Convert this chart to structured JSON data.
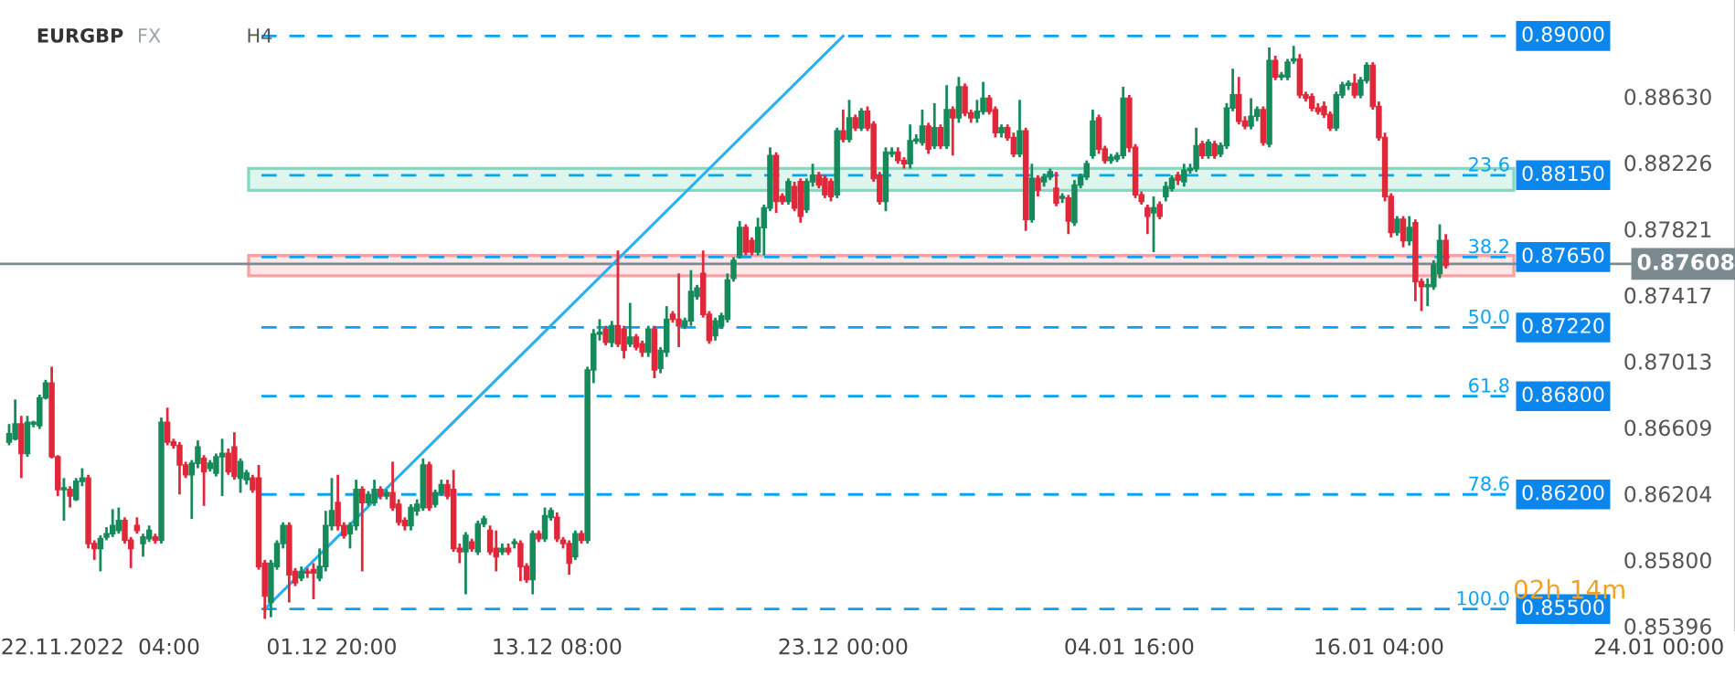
{
  "chart_data": {
    "type": "candlestick",
    "title": "EURGBP",
    "categories": [
      null,
      null,
      null,
      null,
      null,
      null,
      null,
      null,
      null,
      null,
      null,
      null,
      null,
      null,
      null,
      "22.11.2022  04:00",
      null,
      null,
      null,
      null,
      null,
      null,
      null,
      null,
      null,
      null,
      null,
      null,
      null,
      null,
      null,
      null,
      null,
      null,
      null,
      null,
      null,
      null,
      null,
      null,
      null,
      null,
      null,
      null,
      null,
      null,
      null,
      null,
      null,
      null,
      null,
      null,
      null,
      "01.12 20:00",
      null,
      null,
      null,
      null,
      null,
      null,
      null,
      null,
      null,
      null,
      null,
      null,
      null,
      null,
      null,
      null,
      null,
      null,
      null,
      null,
      null,
      null,
      null,
      null,
      null,
      null,
      null,
      null,
      null,
      null,
      null,
      null,
      null,
      null,
      null,
      null,
      "13.12 08:00",
      null,
      null,
      null,
      null,
      null,
      null,
      null,
      null,
      null,
      null,
      null,
      null,
      null,
      null,
      null,
      null,
      null,
      null,
      null,
      null,
      null,
      null,
      null,
      null,
      null,
      null,
      null,
      null,
      null,
      null,
      null,
      null,
      null,
      null,
      null,
      null,
      null,
      null,
      null,
      null,
      null,
      null,
      null,
      null,
      null,
      null,
      "23.12 00:00",
      null,
      null,
      null,
      null,
      null,
      null,
      null,
      null,
      null,
      null,
      null,
      null,
      null,
      null,
      null,
      null,
      null,
      null,
      null,
      null,
      null,
      null,
      null,
      null,
      null,
      null,
      null,
      null,
      null,
      null,
      null,
      null,
      null,
      null,
      null,
      null,
      null,
      null,
      null,
      null,
      null,
      null,
      null,
      null,
      null,
      null,
      "04.01 16:00",
      null,
      null,
      null,
      null,
      null,
      null,
      null,
      null,
      null,
      null,
      null,
      null,
      null,
      null,
      null,
      null,
      null,
      null,
      null,
      null,
      null,
      null,
      null,
      null,
      null,
      null,
      null,
      null,
      null,
      null,
      null,
      null,
      null,
      null,
      null,
      null,
      null,
      null,
      null,
      null,
      "16.01 04:00",
      null,
      null,
      null,
      null,
      null,
      null,
      null,
      null,
      null,
      null,
      null,
      null,
      null,
      null,
      null,
      null,
      null,
      null,
      null,
      null,
      null,
      null,
      null,
      null,
      null,
      null,
      null,
      null,
      null,
      null,
      null,
      null,
      null,
      null,
      null,
      null,
      null,
      null,
      null,
      null,
      null,
      null,
      null,
      null,
      null,
      "24.01 00:00",
      null,
      null,
      null,
      null,
      null,
      null,
      null,
      null,
      null,
      null,
      null,
      null
    ],
    "ohlc": [
      [
        0.8652,
        0.8663,
        0.865,
        0.8657
      ],
      [
        0.8654,
        0.8678,
        0.8653,
        0.8663
      ],
      [
        0.8663,
        0.8668,
        0.863,
        0.8645
      ],
      [
        0.8645,
        0.8668,
        0.8643,
        0.8664
      ],
      [
        0.8663,
        0.8665,
        0.8661,
        0.8664
      ],
      [
        0.8662,
        0.8681,
        0.866,
        0.8679
      ],
      [
        0.8679,
        0.869,
        0.8678,
        0.8688
      ],
      [
        0.8688,
        0.8698,
        0.8642,
        0.8643
      ],
      [
        0.8643,
        0.8644,
        0.8619,
        0.8623
      ],
      [
        0.8623,
        0.863,
        0.8604,
        0.8624
      ],
      [
        0.8623,
        0.8625,
        0.8612,
        0.8619
      ],
      [
        0.8617,
        0.863,
        0.8616,
        0.8628
      ],
      [
        0.8628,
        0.8636,
        0.8625,
        0.863
      ],
      [
        0.863,
        0.8632,
        0.8587,
        0.859
      ],
      [
        0.859,
        0.8592,
        0.858,
        0.8587
      ],
      [
        0.8587,
        0.8595,
        0.8573,
        0.8593
      ],
      [
        0.8594,
        0.86,
        0.8592,
        0.8596
      ],
      [
        0.8596,
        0.8611,
        0.8594,
        0.8601
      ],
      [
        0.8598,
        0.8612,
        0.8596,
        0.8604
      ],
      [
        0.8604,
        0.8606,
        0.859,
        0.8592
      ],
      [
        0.8592,
        0.8594,
        0.8575,
        0.8587
      ],
      [
        0.8601,
        0.8606,
        0.8596,
        0.8598
      ],
      [
        0.859,
        0.8596,
        0.8582,
        0.8594
      ],
      [
        0.8593,
        0.8601,
        0.8591,
        0.8598
      ],
      [
        0.8594,
        0.8596,
        0.859,
        0.8592
      ],
      [
        0.8592,
        0.8667,
        0.859,
        0.8664
      ],
      [
        0.8664,
        0.8673,
        0.865,
        0.8652
      ],
      [
        0.8652,
        0.8654,
        0.8648,
        0.865
      ],
      [
        0.865,
        0.8652,
        0.862,
        0.8638
      ],
      [
        0.8638,
        0.864,
        0.863,
        0.8632
      ],
      [
        0.8632,
        0.8641,
        0.8605,
        0.8639
      ],
      [
        0.8639,
        0.8653,
        0.8636,
        0.8649
      ],
      [
        0.8642,
        0.8644,
        0.8613,
        0.8634
      ],
      [
        0.8636,
        0.8641,
        0.8634,
        0.8639
      ],
      [
        0.8633,
        0.8645,
        0.8631,
        0.8643
      ],
      [
        0.8643,
        0.8654,
        0.8619,
        0.8645
      ],
      [
        0.8645,
        0.8648,
        0.8632,
        0.8634
      ],
      [
        0.8649,
        0.8658,
        0.8629,
        0.8631
      ],
      [
        0.863,
        0.8642,
        0.8621,
        0.864
      ],
      [
        0.8629,
        0.8635,
        0.8626,
        0.8633
      ],
      [
        0.863,
        0.8632,
        0.8621,
        0.8623
      ],
      [
        0.863,
        0.8638,
        0.8574,
        0.8576
      ],
      [
        0.8578,
        0.858,
        0.8544,
        0.8558
      ],
      [
        0.8554,
        0.858,
        0.8545,
        0.8578
      ],
      [
        0.8576,
        0.8592,
        0.8574,
        0.859
      ],
      [
        0.859,
        0.8603,
        0.8587,
        0.8601
      ],
      [
        0.8601,
        0.8603,
        0.8554,
        0.8571
      ],
      [
        0.8573,
        0.8575,
        0.8564,
        0.8566
      ],
      [
        0.8569,
        0.8576,
        0.8567,
        0.8573
      ],
      [
        0.8573,
        0.8575,
        0.8569,
        0.8572
      ],
      [
        0.8574,
        0.8578,
        0.8556,
        0.8572
      ],
      [
        0.8569,
        0.8587,
        0.8567,
        0.8576
      ],
      [
        0.8576,
        0.861,
        0.8573,
        0.8601
      ],
      [
        0.8601,
        0.863,
        0.8598,
        0.861
      ],
      [
        0.8615,
        0.8632,
        0.8598,
        0.8601
      ],
      [
        0.8601,
        0.8603,
        0.8593,
        0.8595
      ],
      [
        0.8596,
        0.8603,
        0.8587,
        0.8601
      ],
      [
        0.8601,
        0.8629,
        0.8598,
        0.8623
      ],
      [
        0.8623,
        0.8625,
        0.8573,
        0.8615
      ],
      [
        0.8615,
        0.8622,
        0.8613,
        0.862
      ],
      [
        0.8615,
        0.8629,
        0.8613,
        0.8623
      ],
      [
        0.8623,
        0.8625,
        0.8617,
        0.8619
      ],
      [
        0.8619,
        0.8623,
        0.8617,
        0.8621
      ],
      [
        0.8621,
        0.864,
        0.861,
        0.8612
      ],
      [
        0.8614,
        0.8617,
        0.8601,
        0.8603
      ],
      [
        0.8604,
        0.8606,
        0.8598,
        0.8601
      ],
      [
        0.8601,
        0.8614,
        0.8598,
        0.8612
      ],
      [
        0.861,
        0.8617,
        0.8607,
        0.8614
      ],
      [
        0.8612,
        0.8642,
        0.861,
        0.8638
      ],
      [
        0.8638,
        0.864,
        0.861,
        0.8612
      ],
      [
        0.8614,
        0.8623,
        0.8612,
        0.8621
      ],
      [
        0.8621,
        0.8629,
        0.8619,
        0.8626
      ],
      [
        0.8626,
        0.8629,
        0.8617,
        0.8619
      ],
      [
        0.8623,
        0.8635,
        0.8585,
        0.8587
      ],
      [
        0.8587,
        0.859,
        0.8578,
        0.8585
      ],
      [
        0.8585,
        0.8597,
        0.8559,
        0.8595
      ],
      [
        0.8591,
        0.8593,
        0.8585,
        0.8587
      ],
      [
        0.8585,
        0.8604,
        0.8583,
        0.8602
      ],
      [
        0.8602,
        0.8607,
        0.86,
        0.8605
      ],
      [
        0.8598,
        0.8601,
        0.8583,
        0.8585
      ],
      [
        0.8587,
        0.8598,
        0.8573,
        0.8582
      ],
      [
        0.8585,
        0.859,
        0.8583,
        0.8587
      ],
      [
        0.8587,
        0.859,
        0.8583,
        0.8585
      ],
      [
        0.859,
        0.8593,
        0.8587,
        0.8591
      ],
      [
        0.859,
        0.8592,
        0.8567,
        0.8576
      ],
      [
        0.8576,
        0.8578,
        0.8566,
        0.8568
      ],
      [
        0.8568,
        0.8598,
        0.8559,
        0.8596
      ],
      [
        0.8596,
        0.8598,
        0.8591,
        0.8593
      ],
      [
        0.8593,
        0.8612,
        0.8591,
        0.8607
      ],
      [
        0.8606,
        0.8612,
        0.8604,
        0.861
      ],
      [
        0.8606,
        0.8609,
        0.8591,
        0.8593
      ],
      [
        0.8592,
        0.8594,
        0.8587,
        0.859
      ],
      [
        0.859,
        0.8592,
        0.8571,
        0.8578
      ],
      [
        0.8582,
        0.8598,
        0.858,
        0.8596
      ],
      [
        0.8596,
        0.8598,
        0.859,
        0.8592
      ],
      [
        0.8592,
        0.8698,
        0.859,
        0.8696
      ],
      [
        0.8696,
        0.8721,
        0.8688,
        0.8718
      ],
      [
        0.8718,
        0.8727,
        0.8714,
        0.8719
      ],
      [
        0.8721,
        0.8723,
        0.8711,
        0.8713
      ],
      [
        0.8713,
        0.8726,
        0.871,
        0.8723
      ],
      [
        0.8723,
        0.8769,
        0.871,
        0.8712
      ],
      [
        0.8721,
        0.8723,
        0.8703,
        0.8708
      ],
      [
        0.8712,
        0.8737,
        0.871,
        0.8716
      ],
      [
        0.8716,
        0.8718,
        0.8708,
        0.871
      ],
      [
        0.8712,
        0.8714,
        0.8704,
        0.8707
      ],
      [
        0.8707,
        0.8723,
        0.8704,
        0.8721
      ],
      [
        0.8721,
        0.8723,
        0.8691,
        0.8696
      ],
      [
        0.8697,
        0.871,
        0.8694,
        0.8708
      ],
      [
        0.8707,
        0.8735,
        0.8704,
        0.8727
      ],
      [
        0.873,
        0.8732,
        0.8725,
        0.8727
      ],
      [
        0.8727,
        0.8755,
        0.871,
        0.8723
      ],
      [
        0.8723,
        0.8728,
        0.8721,
        0.8726
      ],
      [
        0.8726,
        0.8757,
        0.8723,
        0.8744
      ],
      [
        0.8741,
        0.8748,
        0.8739,
        0.8746
      ],
      [
        0.8755,
        0.8769,
        0.8728,
        0.873
      ],
      [
        0.873,
        0.8732,
        0.8712,
        0.8714
      ],
      [
        0.8717,
        0.8728,
        0.8714,
        0.8726
      ],
      [
        0.8723,
        0.8731,
        0.8721,
        0.8729
      ],
      [
        0.8727,
        0.8755,
        0.8725,
        0.8751
      ],
      [
        0.8752,
        0.8765,
        0.875,
        0.8763
      ],
      [
        0.8766,
        0.8787,
        0.8764,
        0.8783
      ],
      [
        0.8783,
        0.8785,
        0.8766,
        0.8768
      ],
      [
        0.8775,
        0.8777,
        0.8766,
        0.8768
      ],
      [
        0.8768,
        0.8789,
        0.8766,
        0.8783
      ],
      [
        0.8783,
        0.8797,
        0.8766,
        0.8795
      ],
      [
        0.8795,
        0.8832,
        0.8793,
        0.8827
      ],
      [
        0.8827,
        0.8829,
        0.8792,
        0.8799
      ],
      [
        0.8802,
        0.8804,
        0.8797,
        0.8799
      ],
      [
        0.8799,
        0.8813,
        0.8797,
        0.8811
      ],
      [
        0.8808,
        0.8811,
        0.8793,
        0.8795
      ],
      [
        0.8811,
        0.8813,
        0.8786,
        0.879
      ],
      [
        0.8794,
        0.8813,
        0.8792,
        0.8811
      ],
      [
        0.8811,
        0.8822,
        0.8808,
        0.8815
      ],
      [
        0.8815,
        0.8817,
        0.8807,
        0.8809
      ],
      [
        0.8813,
        0.8815,
        0.8801,
        0.8803
      ],
      [
        0.8811,
        0.8813,
        0.8799,
        0.8802
      ],
      [
        0.8803,
        0.8844,
        0.8801,
        0.8842
      ],
      [
        0.8842,
        0.8855,
        0.8835,
        0.8837
      ],
      [
        0.8837,
        0.8861,
        0.8835,
        0.885
      ],
      [
        0.885,
        0.8852,
        0.8842,
        0.8844
      ],
      [
        0.8844,
        0.8856,
        0.8842,
        0.8854
      ],
      [
        0.8854,
        0.8857,
        0.8842,
        0.8844
      ],
      [
        0.8846,
        0.8848,
        0.8811,
        0.8813
      ],
      [
        0.8815,
        0.8817,
        0.8797,
        0.8799
      ],
      [
        0.8799,
        0.8832,
        0.8793,
        0.8829
      ],
      [
        0.8828,
        0.8832,
        0.8826,
        0.8829
      ],
      [
        0.8829,
        0.8832,
        0.8822,
        0.8824
      ],
      [
        0.8824,
        0.8826,
        0.8819,
        0.8822
      ],
      [
        0.8822,
        0.8846,
        0.8819,
        0.8836
      ],
      [
        0.8836,
        0.884,
        0.8834,
        0.8837
      ],
      [
        0.8835,
        0.8855,
        0.8833,
        0.8845
      ],
      [
        0.8845,
        0.8847,
        0.8828,
        0.8831
      ],
      [
        0.8833,
        0.8859,
        0.8831,
        0.8844
      ],
      [
        0.8844,
        0.8846,
        0.8831,
        0.8833
      ],
      [
        0.8833,
        0.887,
        0.8831,
        0.8855
      ],
      [
        0.8855,
        0.8857,
        0.8827,
        0.885
      ],
      [
        0.885,
        0.8875,
        0.8847,
        0.8869
      ],
      [
        0.8869,
        0.8871,
        0.8851,
        0.8853
      ],
      [
        0.8853,
        0.8855,
        0.8847,
        0.885
      ],
      [
        0.885,
        0.8861,
        0.8847,
        0.8854
      ],
      [
        0.8854,
        0.8872,
        0.8852,
        0.8862
      ],
      [
        0.8862,
        0.8864,
        0.8852,
        0.8854
      ],
      [
        0.8855,
        0.8857,
        0.8838,
        0.8841
      ],
      [
        0.8841,
        0.8846,
        0.8838,
        0.8844
      ],
      [
        0.8844,
        0.8846,
        0.8836,
        0.8838
      ],
      [
        0.8838,
        0.8841,
        0.8826,
        0.8828
      ],
      [
        0.8828,
        0.8861,
        0.8826,
        0.8842
      ],
      [
        0.8842,
        0.8844,
        0.8781,
        0.8788
      ],
      [
        0.8788,
        0.8822,
        0.8786,
        0.8813
      ],
      [
        0.8813,
        0.8815,
        0.8802,
        0.8806
      ],
      [
        0.8811,
        0.8816,
        0.8808,
        0.8814
      ],
      [
        0.8814,
        0.8819,
        0.8812,
        0.8817
      ],
      [
        0.8807,
        0.8817,
        0.8796,
        0.8798
      ],
      [
        0.8801,
        0.8804,
        0.8798,
        0.8802
      ],
      [
        0.8801,
        0.8803,
        0.8779,
        0.8787
      ],
      [
        0.8786,
        0.8812,
        0.8784,
        0.8809
      ],
      [
        0.8809,
        0.8816,
        0.8807,
        0.8814
      ],
      [
        0.8814,
        0.8824,
        0.8812,
        0.8822
      ],
      [
        0.8827,
        0.8855,
        0.8825,
        0.8848
      ],
      [
        0.885,
        0.8852,
        0.8828,
        0.8831
      ],
      [
        0.8831,
        0.8833,
        0.8822,
        0.8824
      ],
      [
        0.8824,
        0.8828,
        0.8822,
        0.8826
      ],
      [
        0.8825,
        0.8829,
        0.8823,
        0.8827
      ],
      [
        0.8827,
        0.8869,
        0.8825,
        0.8862
      ],
      [
        0.8862,
        0.8864,
        0.8829,
        0.8832
      ],
      [
        0.8832,
        0.8834,
        0.8801,
        0.8803
      ],
      [
        0.8803,
        0.8805,
        0.8797,
        0.8799
      ],
      [
        0.8795,
        0.8797,
        0.8779,
        0.879
      ],
      [
        0.8792,
        0.8802,
        0.8768,
        0.8795
      ],
      [
        0.8797,
        0.8799,
        0.8788,
        0.879
      ],
      [
        0.8802,
        0.8811,
        0.8799,
        0.8808
      ],
      [
        0.8807,
        0.8815,
        0.8805,
        0.8813
      ],
      [
        0.8815,
        0.8817,
        0.8809,
        0.8812
      ],
      [
        0.8811,
        0.8822,
        0.8808,
        0.8818
      ],
      [
        0.8818,
        0.8822,
        0.8816,
        0.8819
      ],
      [
        0.8819,
        0.8844,
        0.8817,
        0.8833
      ],
      [
        0.8834,
        0.8836,
        0.8825,
        0.8827
      ],
      [
        0.8827,
        0.8837,
        0.8825,
        0.8835
      ],
      [
        0.8834,
        0.8836,
        0.8825,
        0.8827
      ],
      [
        0.8828,
        0.8835,
        0.8826,
        0.8833
      ],
      [
        0.8833,
        0.8859,
        0.8831,
        0.8856
      ],
      [
        0.8856,
        0.888,
        0.8854,
        0.8864
      ],
      [
        0.8864,
        0.8875,
        0.8846,
        0.8848
      ],
      [
        0.8848,
        0.8851,
        0.8843,
        0.8845
      ],
      [
        0.8845,
        0.8862,
        0.8843,
        0.8851
      ],
      [
        0.8851,
        0.8857,
        0.8848,
        0.8855
      ],
      [
        0.8855,
        0.8857,
        0.8833,
        0.8835
      ],
      [
        0.8834,
        0.8893,
        0.8832,
        0.8885
      ],
      [
        0.8885,
        0.8888,
        0.8873,
        0.8875
      ],
      [
        0.8875,
        0.8878,
        0.8873,
        0.8876
      ],
      [
        0.8875,
        0.8886,
        0.8873,
        0.8884
      ],
      [
        0.8885,
        0.8894,
        0.8883,
        0.8886
      ],
      [
        0.8886,
        0.8889,
        0.8862,
        0.8864
      ],
      [
        0.8864,
        0.8866,
        0.886,
        0.8862
      ],
      [
        0.8863,
        0.8865,
        0.8854,
        0.8856
      ],
      [
        0.8856,
        0.8859,
        0.8852,
        0.8854
      ],
      [
        0.8857,
        0.886,
        0.885,
        0.8852
      ],
      [
        0.8852,
        0.8854,
        0.8842,
        0.8844
      ],
      [
        0.8844,
        0.8866,
        0.8842,
        0.8864
      ],
      [
        0.8864,
        0.8872,
        0.8862,
        0.887
      ],
      [
        0.887,
        0.8873,
        0.8867,
        0.8871
      ],
      [
        0.8871,
        0.8877,
        0.8862,
        0.8864
      ],
      [
        0.8864,
        0.8875,
        0.8862,
        0.8873
      ],
      [
        0.8873,
        0.8884,
        0.8871,
        0.8882
      ],
      [
        0.8882,
        0.8884,
        0.8855,
        0.8857
      ],
      [
        0.8857,
        0.886,
        0.8836,
        0.8838
      ],
      [
        0.8838,
        0.8841,
        0.8799,
        0.8802
      ],
      [
        0.8802,
        0.8804,
        0.8777,
        0.878
      ],
      [
        0.878,
        0.879,
        0.8778,
        0.8788
      ],
      [
        0.8788,
        0.879,
        0.8771,
        0.8775
      ],
      [
        0.8775,
        0.879,
        0.8772,
        0.8783
      ],
      [
        0.8786,
        0.8788,
        0.8738,
        0.875
      ],
      [
        0.875,
        0.8752,
        0.8732,
        0.8747
      ],
      [
        0.8747,
        0.8752,
        0.8735,
        0.8748
      ],
      [
        0.8747,
        0.8763,
        0.8745,
        0.876
      ],
      [
        0.8755,
        0.8785,
        0.8752,
        0.8775
      ],
      [
        0.8775,
        0.8779,
        0.8758,
        0.876
      ],
      null,
      null,
      null,
      null,
      null,
      null,
      null,
      null,
      null,
      null,
      null,
      null,
      null,
      null,
      null,
      null,
      null,
      null,
      null,
      null,
      null,
      null,
      null,
      null,
      null,
      null,
      null,
      null,
      null,
      null,
      null,
      null,
      null,
      null,
      null,
      null,
      null,
      null,
      null,
      null,
      null,
      null,
      null,
      null,
      null,
      null,
      null
    ],
    "series": [
      {
        "type": "line",
        "color": "#29b0f0",
        "values": [
          null,
          null,
          null,
          null,
          null,
          null,
          null,
          null,
          null,
          null,
          null,
          null,
          null,
          null,
          null,
          null,
          null,
          null,
          null,
          null,
          null,
          null,
          null,
          null,
          null,
          null,
          null,
          null,
          null,
          null,
          null,
          null,
          null,
          null,
          null,
          null,
          null,
          null,
          null,
          null,
          null,
          null,
          0.855,
          null,
          null,
          null,
          null,
          null,
          null,
          null,
          null,
          null,
          null,
          null,
          null,
          null,
          null,
          null,
          null,
          null,
          null,
          null,
          null,
          null,
          null,
          null,
          null,
          null,
          null,
          null,
          null,
          null,
          null,
          null,
          null,
          null,
          null,
          null,
          null,
          null,
          null,
          null,
          null,
          null,
          null,
          null,
          null,
          null,
          null,
          null,
          null,
          null,
          null,
          null,
          null,
          null,
          null,
          null,
          null,
          null,
          null,
          null,
          null,
          null,
          null,
          null,
          null,
          null,
          null,
          null,
          null,
          null,
          null,
          null,
          null,
          null,
          null,
          null,
          null,
          null,
          null,
          null,
          null,
          null,
          null,
          null,
          null,
          null,
          null,
          null,
          null,
          null,
          null,
          null,
          null,
          null,
          null,
          0.89,
          null,
          null,
          null,
          null,
          null,
          null,
          null,
          null,
          null,
          null,
          null,
          null,
          null,
          null,
          null,
          null,
          null,
          null,
          null,
          null,
          null,
          null,
          null,
          null,
          null,
          null,
          null,
          null,
          null,
          null,
          null,
          null,
          null,
          null,
          null,
          null,
          null,
          null,
          null,
          null,
          null,
          null,
          null,
          null,
          null,
          null,
          null,
          null,
          null,
          null,
          null,
          null,
          null,
          null,
          null,
          null,
          null,
          null,
          null,
          null,
          null,
          null,
          null,
          null,
          null,
          null,
          null,
          null,
          null,
          null,
          null,
          null,
          null,
          null,
          null,
          null,
          null,
          null,
          null,
          null,
          null,
          null,
          null,
          null,
          null,
          null,
          null,
          null,
          null,
          null,
          null,
          null,
          null,
          null,
          null,
          null,
          null,
          null,
          null,
          null,
          null,
          null,
          null,
          null,
          null,
          null,
          null,
          null,
          null,
          null,
          null,
          null,
          null,
          null,
          null,
          null,
          null,
          null,
          null,
          null,
          null,
          null,
          null,
          null,
          null,
          null,
          null,
          null,
          null,
          null,
          null,
          null,
          null,
          null,
          null,
          null,
          null,
          null,
          null,
          null,
          null,
          null,
          null,
          null,
          null,
          null
        ]
      }
    ],
    "ylim": [
      0.8537,
      0.8922
    ],
    "yticks": [
      {
        "value": 0.8863,
        "label": "0.88630"
      },
      0.88226,
      0.87821,
      0.87417,
      0.87013,
      0.86609,
      0.86204,
      {
        "value": 0.858,
        "label": "0.85800"
      },
      0.85396
    ],
    "bands": [
      {
        "axis": "y",
        "from": 0.88057,
        "to": 0.88191,
        "color": "#7fdcbf"
      },
      {
        "axis": "y",
        "from": 0.87536,
        "to": 0.87659,
        "color": "#f4a3a3"
      }
    ],
    "ref_lines": [
      {
        "axis": "y",
        "value": 0.89,
        "label": "0.89000",
        "color": "#0aa2f5",
        "line_style": "dashed"
      },
      {
        "axis": "y",
        "value": 0.8815,
        "label": "0.88150",
        "color": "#0aa2f5",
        "line_style": "dashed"
      },
      {
        "axis": "y",
        "value": 0.8765,
        "label": "0.87650",
        "color": "#0aa2f5",
        "line_style": "dashed"
      },
      {
        "axis": "y",
        "value": 0.8722,
        "label": "0.87220",
        "color": "#0aa2f5",
        "line_style": "dashed"
      },
      {
        "axis": "y",
        "value": 0.868,
        "label": "0.86800",
        "color": "#0aa2f5",
        "line_style": "dashed"
      },
      {
        "axis": "y",
        "value": 0.862,
        "label": "0.86200",
        "color": "#0aa2f5",
        "line_style": "dashed"
      },
      {
        "axis": "y",
        "value": 0.855,
        "label": "0.85500",
        "color": "#0aa2f5",
        "line_style": "dashed"
      },
      {
        "axis": "y",
        "value": 0.87608,
        "label": "0.87608",
        "color": "#7c8a90",
        "line_style": "solid"
      }
    ],
    "annotations": [
      "FX",
      "H4",
      "02h 14m",
      "23.6",
      "38.2",
      "50.0",
      "61.8",
      "78.6",
      "100.0"
    ]
  }
}
